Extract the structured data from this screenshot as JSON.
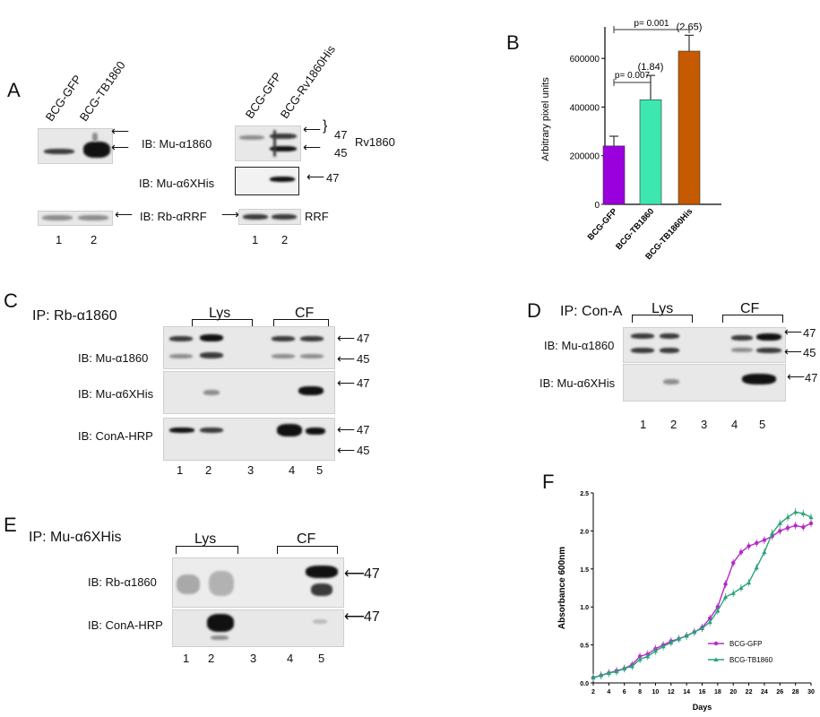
{
  "panels": {
    "A": "A",
    "B": "B",
    "C": "C",
    "D": "D",
    "E": "E",
    "F": "F"
  },
  "A": {
    "left_lanes": [
      "BCG-GFP",
      "BCG-TB1860"
    ],
    "right_lanes": [
      "BCG-GFP",
      "BCG-Rv1860His"
    ],
    "ib1": "IB: Mu-α1860",
    "ib2": "IB: Mu-α6XHis",
    "ib3": "IB: Rb-αRRF",
    "mw47": "47",
    "mw45": "45",
    "mw47b": "47",
    "protein": "Rv1860",
    "rrf": "RRF",
    "nums": [
      "1",
      "2"
    ]
  },
  "C": {
    "title": "IP: Rb-α1860",
    "lys": "Lys",
    "cf": "CF",
    "ib1": "IB: Mu-α1860",
    "ib2": "IB: Mu-α6XHis",
    "ib3": "IB: ConA-HRP",
    "mw": [
      "47",
      "45",
      "47",
      "47",
      "45"
    ],
    "nums": [
      "1",
      "2",
      "3",
      "4",
      "5"
    ]
  },
  "D": {
    "title": "IP: Con-A",
    "lys": "Lys",
    "cf": "CF",
    "ib1": "IB: Mu-α1860",
    "ib2": "IB: Mu-α6XHis",
    "mw": [
      "47",
      "45",
      "47"
    ],
    "nums": [
      "1",
      "2",
      "3",
      "4",
      "5"
    ]
  },
  "E": {
    "title": "IP: Mu-α6XHis",
    "lys": "Lys",
    "cf": "CF",
    "ib1": "IB: Rb-α1860",
    "ib2": "IB: ConA-HRP",
    "mw": [
      "47",
      "47"
    ],
    "nums": [
      "1",
      "2",
      "3",
      "4",
      "5"
    ]
  },
  "chart_data": [
    {
      "type": "bar",
      "ylabel": "Arbitrary pixel units",
      "categories": [
        "BCG-GFP",
        "BCG-TB1860",
        "BCG-TB1860His"
      ],
      "values": [
        240000,
        430000,
        630000
      ],
      "errors": [
        40000,
        100000,
        65000
      ],
      "fold": [
        "",
        "(1.84)",
        "(2.65)"
      ],
      "colors": [
        "#9900dd",
        "#3de8b0",
        "#c55a00"
      ],
      "ylim": [
        0,
        700000
      ],
      "yticks": [
        "0",
        "200000",
        "400000",
        "600000"
      ],
      "pvalues": [
        "p= 0.007",
        "p= 0.001"
      ]
    },
    {
      "type": "line",
      "xlabel": "Days",
      "ylabel": "Absorbance 600nm",
      "xlim": [
        2,
        30
      ],
      "ylim": [
        0,
        2.5
      ],
      "xticks": [
        "2",
        "4",
        "6",
        "8",
        "10",
        "12",
        "14",
        "16",
        "18",
        "20",
        "22",
        "24",
        "26",
        "28",
        "30"
      ],
      "yticks": [
        "0.0",
        "0.5",
        "1.0",
        "1.5",
        "2.0",
        "2.5"
      ],
      "series": [
        {
          "name": "BCG-GFP",
          "color": "#b52ac8",
          "x": [
            2,
            3,
            4,
            5,
            6,
            7,
            8,
            9,
            10,
            11,
            12,
            13,
            14,
            15,
            16,
            17,
            18,
            19,
            20,
            21,
            22,
            23,
            24,
            25,
            26,
            27,
            28,
            29,
            30
          ],
          "y": [
            0.07,
            0.1,
            0.13,
            0.16,
            0.19,
            0.24,
            0.35,
            0.38,
            0.45,
            0.5,
            0.55,
            0.58,
            0.62,
            0.67,
            0.73,
            0.85,
            1.0,
            1.3,
            1.58,
            1.72,
            1.8,
            1.84,
            1.88,
            1.93,
            2.0,
            2.04,
            2.07,
            2.05,
            2.1
          ]
        },
        {
          "name": "BCG-TB1860",
          "color": "#2aa37a",
          "x": [
            2,
            3,
            4,
            5,
            6,
            7,
            8,
            9,
            10,
            11,
            12,
            13,
            14,
            15,
            16,
            17,
            18,
            19,
            20,
            21,
            22,
            23,
            24,
            25,
            26,
            27,
            28,
            29,
            30
          ],
          "y": [
            0.07,
            0.1,
            0.13,
            0.15,
            0.19,
            0.22,
            0.31,
            0.35,
            0.42,
            0.48,
            0.53,
            0.58,
            0.62,
            0.67,
            0.72,
            0.8,
            0.95,
            1.13,
            1.18,
            1.25,
            1.32,
            1.52,
            1.72,
            1.97,
            2.1,
            2.18,
            2.25,
            2.23,
            2.18
          ]
        }
      ]
    }
  ]
}
